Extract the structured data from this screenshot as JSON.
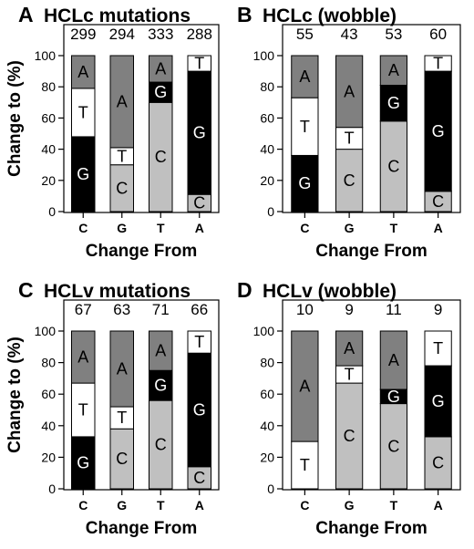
{
  "colors": {
    "A": "#808080",
    "T": "#ffffff",
    "G": "#000000",
    "C": "#c0c0c0"
  },
  "chart_data": [
    {
      "type": "bar",
      "stacked": true,
      "panel_label": "A",
      "title": "HCLc mutations",
      "xlabel": "Change From",
      "ylabel": "Change to (%)",
      "ylim": [
        0,
        100
      ],
      "yticks": [
        0,
        20,
        40,
        60,
        80,
        100
      ],
      "categories": [
        "C",
        "G",
        "T",
        "A"
      ],
      "counts": [
        "299",
        "294",
        "333",
        "288"
      ],
      "series": [
        {
          "name": "C",
          "values": [
            0,
            30,
            70,
            11
          ]
        },
        {
          "name": "G",
          "values": [
            48,
            0,
            13,
            79
          ]
        },
        {
          "name": "T",
          "values": [
            31,
            11,
            0,
            10
          ]
        },
        {
          "name": "A",
          "values": [
            21,
            59,
            17,
            0
          ]
        }
      ]
    },
    {
      "type": "bar",
      "stacked": true,
      "panel_label": "B",
      "title": "HCLc (wobble)",
      "xlabel": "Change From",
      "ylabel": "",
      "ylim": [
        0,
        100
      ],
      "yticks": [
        0,
        20,
        40,
        60,
        80,
        100
      ],
      "categories": [
        "C",
        "G",
        "T",
        "A"
      ],
      "counts": [
        "55",
        "43",
        "53",
        "60"
      ],
      "series": [
        {
          "name": "C",
          "values": [
            0,
            40,
            58,
            13
          ]
        },
        {
          "name": "G",
          "values": [
            36,
            0,
            23,
            77
          ]
        },
        {
          "name": "T",
          "values": [
            37,
            14,
            0,
            10
          ]
        },
        {
          "name": "A",
          "values": [
            27,
            46,
            19,
            0
          ]
        }
      ]
    },
    {
      "type": "bar",
      "stacked": true,
      "panel_label": "C",
      "title": "HCLv mutations",
      "xlabel": "Change From",
      "ylabel": "Change to (%)",
      "ylim": [
        0,
        100
      ],
      "yticks": [
        0,
        20,
        40,
        60,
        80,
        100
      ],
      "categories": [
        "C",
        "G",
        "T",
        "A"
      ],
      "counts": [
        "67",
        "63",
        "71",
        "66"
      ],
      "series": [
        {
          "name": "C",
          "values": [
            0,
            38,
            56,
            14
          ]
        },
        {
          "name": "G",
          "values": [
            33,
            0,
            19,
            72
          ]
        },
        {
          "name": "T",
          "values": [
            34,
            14,
            0,
            14
          ]
        },
        {
          "name": "A",
          "values": [
            33,
            48,
            25,
            0
          ]
        }
      ]
    },
    {
      "type": "bar",
      "stacked": true,
      "panel_label": "D",
      "title": "HCLv (wobble)",
      "xlabel": "Change From",
      "ylabel": "",
      "ylim": [
        0,
        100
      ],
      "yticks": [
        0,
        20,
        40,
        60,
        80,
        100
      ],
      "categories": [
        "C",
        "G",
        "T",
        "A"
      ],
      "counts": [
        "10",
        "9",
        "11",
        "9"
      ],
      "series": [
        {
          "name": "C",
          "values": [
            0,
            67,
            54,
            33
          ]
        },
        {
          "name": "G",
          "values": [
            0,
            0,
            9,
            45
          ]
        },
        {
          "name": "T",
          "values": [
            30,
            11,
            0,
            22
          ]
        },
        {
          "name": "A",
          "values": [
            70,
            22,
            37,
            0
          ]
        }
      ]
    }
  ]
}
